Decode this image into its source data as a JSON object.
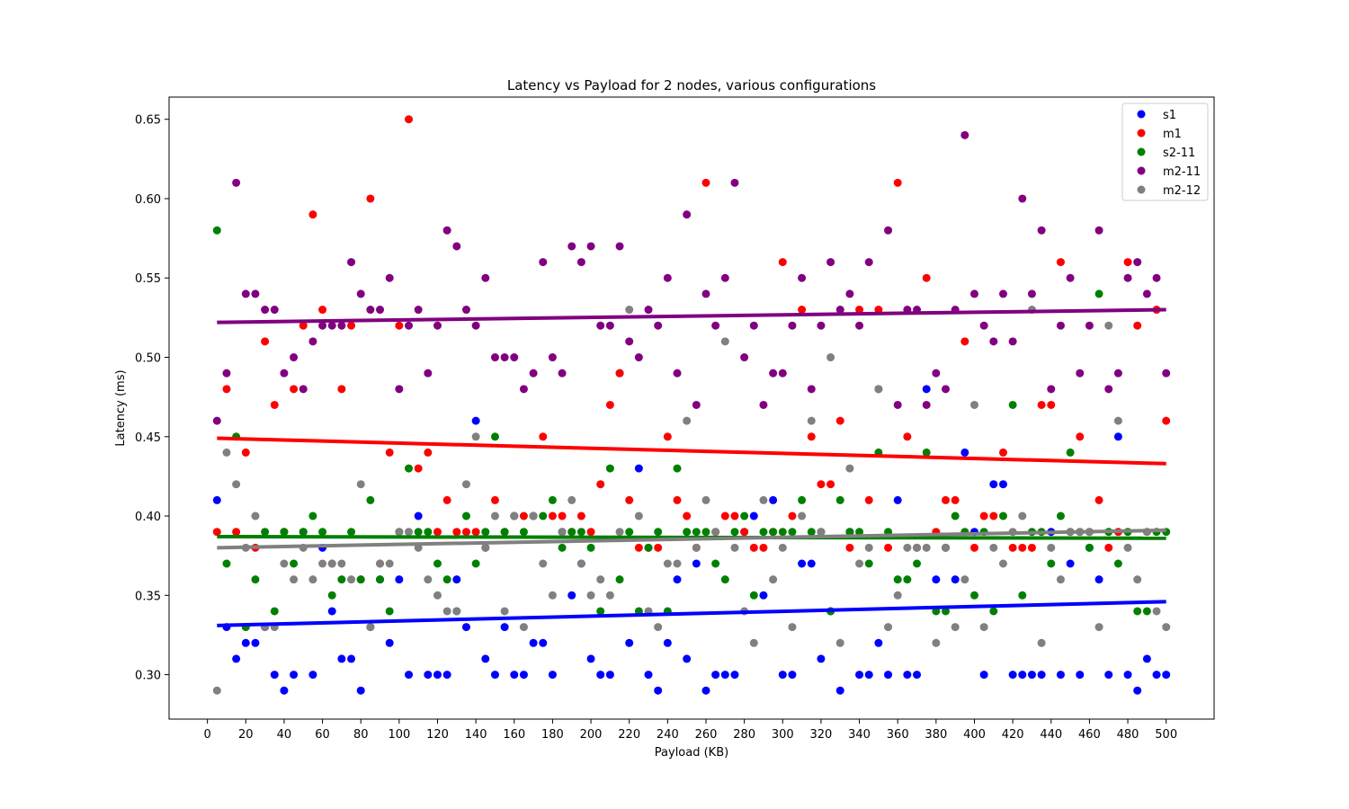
{
  "chart_data": {
    "type": "scatter",
    "title": "Latency vs Payload for 2 nodes, various configurations",
    "xlabel": "Payload (KB)",
    "ylabel": "Latency (ms)",
    "xlim": [
      -20,
      525
    ],
    "ylim": [
      0.272,
      0.664
    ],
    "xticks": [
      0,
      20,
      40,
      60,
      80,
      100,
      120,
      140,
      160,
      180,
      200,
      220,
      240,
      260,
      280,
      300,
      320,
      340,
      360,
      380,
      400,
      420,
      440,
      460,
      480,
      500
    ],
    "xtick_labels": [
      "0",
      "20",
      "40",
      "60",
      "80",
      "100",
      "120",
      "140",
      "160",
      "180",
      "200",
      "220",
      "240",
      "260",
      "280",
      "300",
      "320",
      "340",
      "360",
      "380",
      "400",
      "420",
      "440",
      "460",
      "480",
      "500"
    ],
    "yticks": [
      0.3,
      0.35,
      0.4,
      0.45,
      0.5,
      0.55,
      0.6,
      0.65
    ],
    "ytick_labels": [
      "0.30",
      "0.35",
      "0.40",
      "0.45",
      "0.50",
      "0.55",
      "0.60",
      "0.65"
    ],
    "grid": false,
    "legend_position": "top-right",
    "x": [
      5,
      10,
      15,
      20,
      25,
      30,
      35,
      40,
      45,
      50,
      55,
      60,
      65,
      70,
      75,
      80,
      85,
      90,
      95,
      100,
      105,
      110,
      115,
      120,
      125,
      130,
      135,
      140,
      145,
      150,
      155,
      160,
      165,
      170,
      175,
      180,
      185,
      190,
      195,
      200,
      205,
      210,
      215,
      220,
      225,
      230,
      235,
      240,
      245,
      250,
      255,
      260,
      265,
      270,
      275,
      280,
      285,
      290,
      295,
      300,
      305,
      310,
      315,
      320,
      325,
      330,
      335,
      340,
      345,
      350,
      355,
      360,
      365,
      370,
      375,
      380,
      385,
      390,
      395,
      400,
      405,
      410,
      415,
      420,
      425,
      430,
      435,
      440,
      445,
      450,
      455,
      460,
      465,
      470,
      475,
      480,
      485,
      490,
      495,
      500
    ],
    "series": [
      {
        "name": "s1",
        "color": "#0000ff",
        "y": [
          0.41,
          0.33,
          0.31,
          0.32,
          0.32,
          0.33,
          0.3,
          0.29,
          0.3,
          0.39,
          0.3,
          0.38,
          0.34,
          0.31,
          0.31,
          0.29,
          0.33,
          0.36,
          0.32,
          0.36,
          0.3,
          0.4,
          0.3,
          0.3,
          0.3,
          0.36,
          0.33,
          0.46,
          0.31,
          0.3,
          0.33,
          0.3,
          0.3,
          0.32,
          0.32,
          0.3,
          0.39,
          0.35,
          0.37,
          0.31,
          0.3,
          0.3,
          0.49,
          0.32,
          0.43,
          0.3,
          0.29,
          0.32,
          0.36,
          0.31,
          0.37,
          0.29,
          0.3,
          0.3,
          0.3,
          0.39,
          0.4,
          0.35,
          0.41,
          0.3,
          0.3,
          0.37,
          0.37,
          0.31,
          0.34,
          0.29,
          0.39,
          0.3,
          0.3,
          0.32,
          0.3,
          0.41,
          0.3,
          0.3,
          0.48,
          0.36,
          0.38,
          0.36,
          0.44,
          0.39,
          0.3,
          0.42,
          0.42,
          0.3,
          0.3,
          0.3,
          0.3,
          0.39,
          0.3,
          0.37,
          0.3,
          0.38,
          0.36,
          0.3,
          0.45,
          0.3,
          0.29,
          0.31,
          0.3,
          0.3
        ],
        "trend": [
          0.331,
          0.346
        ]
      },
      {
        "name": "m1",
        "color": "#ff0000",
        "y": [
          0.39,
          0.48,
          0.39,
          0.44,
          0.38,
          0.51,
          0.47,
          0.39,
          0.48,
          0.52,
          0.59,
          0.53,
          0.37,
          0.48,
          0.52,
          0.36,
          0.6,
          0.37,
          0.44,
          0.52,
          0.65,
          0.43,
          0.44,
          0.39,
          0.41,
          0.39,
          0.39,
          0.39,
          0.38,
          0.41,
          0.39,
          0.4,
          0.4,
          0.4,
          0.45,
          0.4,
          0.4,
          0.39,
          0.4,
          0.39,
          0.42,
          0.47,
          0.49,
          0.41,
          0.38,
          0.38,
          0.38,
          0.45,
          0.41,
          0.4,
          0.38,
          0.61,
          0.39,
          0.4,
          0.4,
          0.39,
          0.38,
          0.38,
          0.39,
          0.56,
          0.4,
          0.53,
          0.45,
          0.42,
          0.42,
          0.46,
          0.38,
          0.53,
          0.41,
          0.53,
          0.38,
          0.61,
          0.45,
          0.38,
          0.55,
          0.39,
          0.41,
          0.41,
          0.51,
          0.38,
          0.4,
          0.4,
          0.44,
          0.38,
          0.38,
          0.38,
          0.47,
          0.47,
          0.56,
          0.39,
          0.45,
          0.39,
          0.41,
          0.38,
          0.39,
          0.56,
          0.52,
          0.39,
          0.53,
          0.46
        ],
        "trend": [
          0.449,
          0.433
        ]
      },
      {
        "name": "s2-11",
        "color": "#008000",
        "y": [
          0.58,
          0.37,
          0.45,
          0.33,
          0.36,
          0.39,
          0.34,
          0.39,
          0.37,
          0.39,
          0.4,
          0.39,
          0.35,
          0.36,
          0.39,
          0.36,
          0.41,
          0.36,
          0.34,
          0.39,
          0.43,
          0.39,
          0.39,
          0.37,
          0.36,
          0.34,
          0.4,
          0.37,
          0.39,
          0.45,
          0.39,
          0.4,
          0.39,
          0.4,
          0.4,
          0.41,
          0.38,
          0.39,
          0.39,
          0.38,
          0.34,
          0.43,
          0.36,
          0.39,
          0.34,
          0.38,
          0.39,
          0.34,
          0.43,
          0.39,
          0.39,
          0.39,
          0.37,
          0.36,
          0.39,
          0.4,
          0.35,
          0.39,
          0.39,
          0.39,
          0.39,
          0.41,
          0.39,
          0.39,
          0.34,
          0.41,
          0.39,
          0.39,
          0.37,
          0.44,
          0.39,
          0.36,
          0.36,
          0.37,
          0.44,
          0.34,
          0.34,
          0.4,
          0.39,
          0.35,
          0.39,
          0.34,
          0.4,
          0.47,
          0.35,
          0.39,
          0.39,
          0.37,
          0.4,
          0.44,
          0.39,
          0.38,
          0.54,
          0.39,
          0.37,
          0.39,
          0.34,
          0.34,
          0.39,
          0.39
        ],
        "trend": [
          0.387,
          0.386
        ]
      },
      {
        "name": "m2-11",
        "color": "#800080",
        "y": [
          0.46,
          0.49,
          0.61,
          0.54,
          0.54,
          0.53,
          0.53,
          0.49,
          0.5,
          0.48,
          0.51,
          0.52,
          0.52,
          0.52,
          0.56,
          0.54,
          0.53,
          0.53,
          0.55,
          0.48,
          0.52,
          0.53,
          0.49,
          0.52,
          0.58,
          0.57,
          0.53,
          0.52,
          0.55,
          0.5,
          0.5,
          0.5,
          0.48,
          0.49,
          0.56,
          0.5,
          0.49,
          0.57,
          0.56,
          0.57,
          0.52,
          0.52,
          0.57,
          0.51,
          0.5,
          0.53,
          0.52,
          0.55,
          0.49,
          0.59,
          0.47,
          0.54,
          0.52,
          0.55,
          0.61,
          0.5,
          0.52,
          0.47,
          0.49,
          0.49,
          0.52,
          0.55,
          0.48,
          0.52,
          0.56,
          0.53,
          0.54,
          0.52,
          0.56,
          0.48,
          0.58,
          0.47,
          0.53,
          0.53,
          0.47,
          0.49,
          0.48,
          0.53,
          0.64,
          0.54,
          0.52,
          0.51,
          0.54,
          0.51,
          0.6,
          0.54,
          0.58,
          0.48,
          0.52,
          0.55,
          0.49,
          0.52,
          0.58,
          0.48,
          0.49,
          0.55,
          0.56,
          0.54,
          0.55,
          0.49
        ],
        "trend": [
          0.522,
          0.53
        ]
      },
      {
        "name": "m2-12",
        "color": "#808080",
        "y": [
          0.29,
          0.44,
          0.42,
          0.38,
          0.4,
          0.33,
          0.33,
          0.37,
          0.36,
          0.38,
          0.36,
          0.37,
          0.37,
          0.37,
          0.36,
          0.42,
          0.33,
          0.37,
          0.37,
          0.39,
          0.39,
          0.38,
          0.36,
          0.35,
          0.34,
          0.34,
          0.42,
          0.45,
          0.38,
          0.4,
          0.34,
          0.4,
          0.33,
          0.4,
          0.37,
          0.35,
          0.39,
          0.41,
          0.37,
          0.35,
          0.36,
          0.35,
          0.39,
          0.53,
          0.4,
          0.34,
          0.33,
          0.37,
          0.37,
          0.46,
          0.38,
          0.41,
          0.39,
          0.51,
          0.38,
          0.34,
          0.32,
          0.41,
          0.36,
          0.38,
          0.33,
          0.4,
          0.46,
          0.39,
          0.5,
          0.32,
          0.43,
          0.37,
          0.38,
          0.48,
          0.33,
          0.35,
          0.38,
          0.38,
          0.38,
          0.32,
          0.38,
          0.33,
          0.36,
          0.47,
          0.33,
          0.38,
          0.37,
          0.39,
          0.4,
          0.53,
          0.32,
          0.38,
          0.36,
          0.39,
          0.39,
          0.39,
          0.33,
          0.52,
          0.46,
          0.38,
          0.36,
          0.39,
          0.34,
          0.33
        ],
        "trend": [
          0.38,
          0.391
        ]
      }
    ]
  }
}
